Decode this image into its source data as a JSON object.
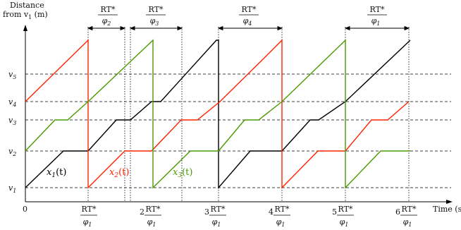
{
  "axes": {
    "y_title_line1": "Distance",
    "y_title_line2": "from v",
    "y_title_sub": "1",
    "y_title_unit": " (m)",
    "x_title": "Time (s)",
    "origin": "0"
  },
  "levels": [
    {
      "name": "v",
      "sub": "1"
    },
    {
      "name": "v",
      "sub": "2"
    },
    {
      "name": "v",
      "sub": "3"
    },
    {
      "name": "v",
      "sub": "4"
    },
    {
      "name": "v",
      "sub": "5"
    }
  ],
  "ticks": [
    {
      "coef": "",
      "num": "RT*",
      "den": "φ",
      "den_sub": "1"
    },
    {
      "coef": "2",
      "num": "RT*",
      "den": "φ",
      "den_sub": "1"
    },
    {
      "coef": "3",
      "num": "RT*",
      "den": "φ",
      "den_sub": "1"
    },
    {
      "coef": "4",
      "num": "RT*",
      "den": "φ",
      "den_sub": "1"
    },
    {
      "coef": "5",
      "num": "RT*",
      "den": "φ",
      "den_sub": "1"
    },
    {
      "coef": "6",
      "num": "RT*",
      "den": "φ",
      "den_sub": "1"
    }
  ],
  "intervals": [
    {
      "num": "RT*",
      "den": "φ",
      "den_sub": "2"
    },
    {
      "num": "RT*",
      "den": "φ",
      "den_sub": "3"
    },
    {
      "num": "RT*",
      "den": "φ",
      "den_sub": "4"
    },
    {
      "num": "RT*",
      "den": "φ",
      "den_sub": "1"
    }
  ],
  "curves": [
    {
      "name": "x",
      "sub": "1",
      "arg": "(t)",
      "color": "#000000"
    },
    {
      "name": "x",
      "sub": "2",
      "arg": "(t)",
      "color": "#ff2200"
    },
    {
      "name": "x",
      "sub": "3",
      "arg": "(t)",
      "color": "#4a9a00"
    }
  ]
}
